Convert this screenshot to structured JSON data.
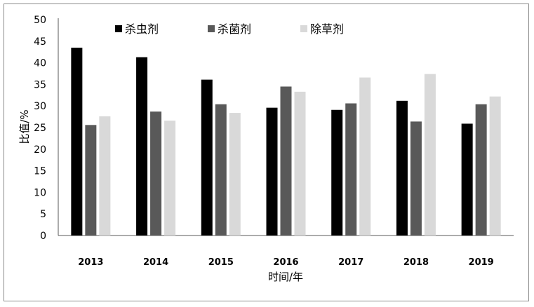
{
  "chart_data": {
    "type": "bar",
    "categories": [
      "2013",
      "2014",
      "2015",
      "2016",
      "2017",
      "2018",
      "2019"
    ],
    "series": [
      {
        "name": "杀虫剂",
        "color": "#000000",
        "values": [
          43.5,
          41.3,
          36.1,
          29.6,
          29.1,
          31.2,
          25.9
        ]
      },
      {
        "name": "杀菌剂",
        "color": "#595959",
        "values": [
          25.6,
          28.7,
          30.4,
          34.5,
          30.6,
          26.4,
          30.4
        ]
      },
      {
        "name": "除草剂",
        "color": "#d9d9d9",
        "values": [
          27.6,
          26.6,
          28.4,
          33.3,
          36.6,
          37.4,
          32.2
        ]
      }
    ],
    "xlabel": "时间/年",
    "ylabel": "比值/%",
    "ylim": [
      0,
      50
    ],
    "yticks": [
      "0",
      "5",
      "10",
      "15",
      "20",
      "25",
      "30",
      "35",
      "40",
      "45",
      "50"
    ],
    "grid": false,
    "legend_position": "top"
  }
}
